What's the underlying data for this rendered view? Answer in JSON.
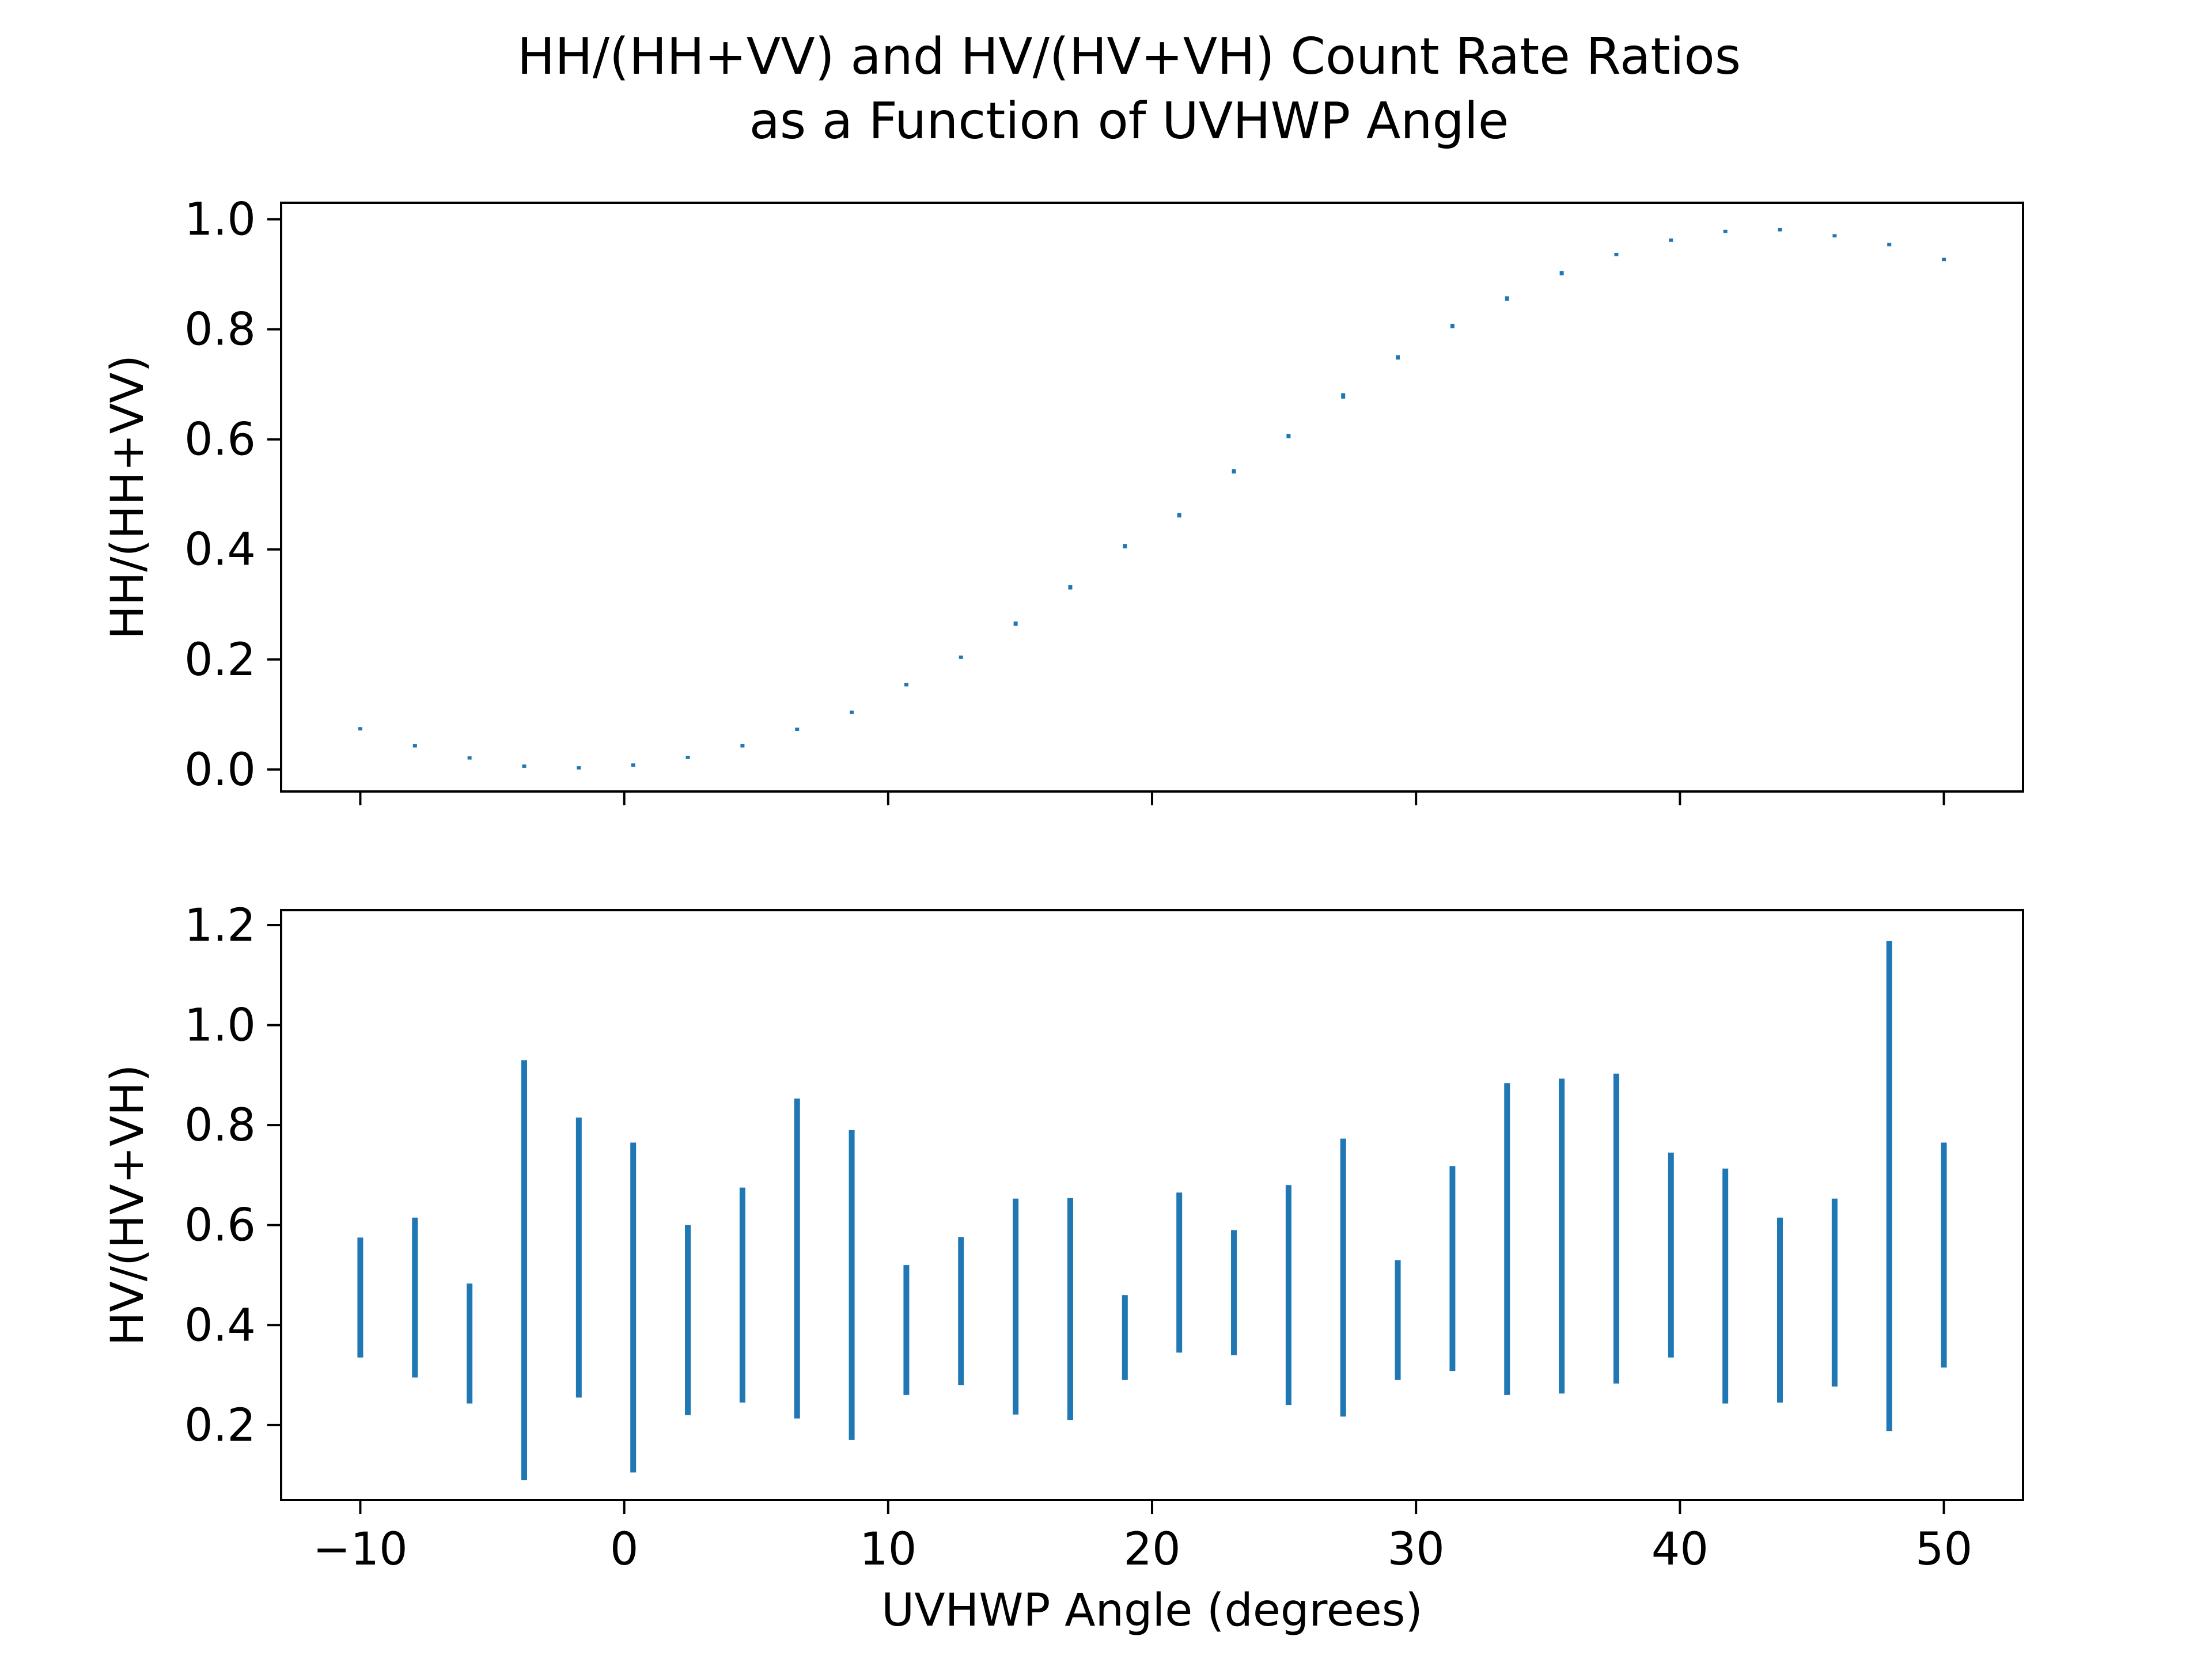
{
  "figure": {
    "title_line1": "HH/(HH+VV) and HV/(HV+VH) Count Rate Ratios",
    "title_line2": "as a Function of UVHWP Angle"
  },
  "colors": {
    "series": "#1f77b4",
    "axes": "#000000",
    "background": "#ffffff"
  },
  "chart_data": [
    {
      "type": "scatter",
      "title": "",
      "xlabel": "",
      "ylabel": "HH/(HH+VV)",
      "xlim": [
        -13,
        53
      ],
      "ylim": [
        -0.04,
        1.03
      ],
      "xticks": [
        -10,
        0,
        10,
        20,
        30,
        40,
        50
      ],
      "yticks": [
        0.0,
        0.2,
        0.4,
        0.6,
        0.8,
        1.0
      ],
      "ytick_labels": [
        "0.0",
        "0.2",
        "0.4",
        "0.6",
        "0.8",
        "1.0"
      ],
      "show_x_tick_labels": false,
      "grid": false,
      "series": [
        {
          "marker": "errorbar",
          "x": [
            -10.0,
            -7.93,
            -5.86,
            -3.79,
            -1.72,
            0.34,
            2.41,
            4.48,
            6.55,
            8.62,
            10.69,
            12.76,
            14.83,
            16.9,
            18.97,
            21.03,
            23.1,
            25.17,
            27.24,
            29.31,
            31.38,
            33.45,
            35.52,
            37.59,
            39.66,
            41.72,
            43.79,
            45.86,
            47.93,
            50.0
          ],
          "y": [
            0.074,
            0.043,
            0.021,
            0.006,
            0.003,
            0.008,
            0.022,
            0.043,
            0.073,
            0.104,
            0.154,
            0.204,
            0.265,
            0.331,
            0.406,
            0.462,
            0.542,
            0.606,
            0.679,
            0.749,
            0.806,
            0.856,
            0.902,
            0.936,
            0.962,
            0.978,
            0.981,
            0.97,
            0.954,
            0.927
          ],
          "yerr": [
            0.003,
            0.003,
            0.003,
            0.003,
            0.003,
            0.003,
            0.003,
            0.003,
            0.003,
            0.003,
            0.003,
            0.003,
            0.004,
            0.004,
            0.004,
            0.004,
            0.004,
            0.004,
            0.005,
            0.004,
            0.004,
            0.004,
            0.004,
            0.003,
            0.003,
            0.003,
            0.003,
            0.003,
            0.003,
            0.003
          ]
        }
      ]
    },
    {
      "type": "scatter",
      "title": "",
      "xlabel": "UVHWP Angle (degrees)",
      "ylabel": "HV/(HV+VH)",
      "xlim": [
        -13,
        53
      ],
      "ylim": [
        0.05,
        1.23
      ],
      "xticks": [
        -10,
        0,
        10,
        20,
        30,
        40,
        50
      ],
      "xtick_labels": [
        "−10",
        "0",
        "10",
        "20",
        "30",
        "40",
        "50"
      ],
      "yticks": [
        0.2,
        0.4,
        0.6,
        0.8,
        1.0,
        1.2
      ],
      "ytick_labels": [
        "0.2",
        "0.4",
        "0.6",
        "0.8",
        "1.0",
        "1.2"
      ],
      "show_x_tick_labels": true,
      "grid": false,
      "series": [
        {
          "marker": "errorbar",
          "x": [
            -10.0,
            -7.93,
            -5.86,
            -3.79,
            -1.72,
            0.34,
            2.41,
            4.48,
            6.55,
            8.62,
            10.69,
            12.76,
            14.83,
            16.9,
            18.97,
            21.03,
            23.1,
            25.17,
            27.24,
            29.31,
            31.38,
            33.45,
            35.52,
            37.59,
            39.66,
            41.72,
            43.79,
            45.86,
            47.93,
            50.0
          ],
          "y": [
            0.455,
            0.455,
            0.363,
            0.51,
            0.535,
            0.435,
            0.41,
            0.46,
            0.533,
            0.48,
            0.39,
            0.428,
            0.437,
            0.432,
            0.375,
            0.505,
            0.465,
            0.46,
            0.495,
            0.41,
            0.513,
            0.572,
            0.578,
            0.593,
            0.54,
            0.478,
            0.43,
            0.465,
            0.678,
            0.54
          ],
          "yerr": [
            0.12,
            0.16,
            0.12,
            0.42,
            0.28,
            0.33,
            0.19,
            0.215,
            0.32,
            0.31,
            0.13,
            0.148,
            0.216,
            0.222,
            0.085,
            0.16,
            0.125,
            0.22,
            0.278,
            0.12,
            0.205,
            0.312,
            0.315,
            0.31,
            0.205,
            0.235,
            0.185,
            0.188,
            0.49,
            0.225
          ]
        }
      ]
    }
  ]
}
